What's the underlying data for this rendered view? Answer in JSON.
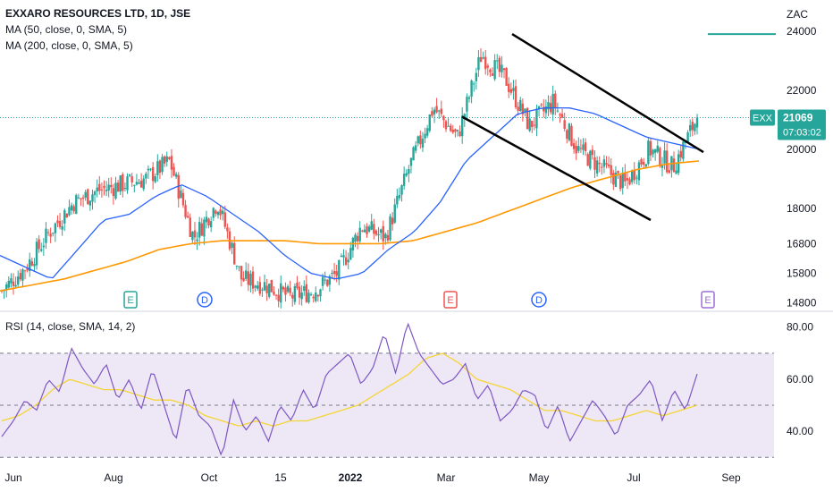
{
  "legend": {
    "title": "EXXARO RESOURCES LTD, 1D, JSE",
    "ma50": "MA (50, close, 0, SMA, 5)",
    "ma200": "MA (200, close, 0, SMA, 5)",
    "rsi": "RSI (14, close, SMA, 14, 2)"
  },
  "price_tag": {
    "symbol": "EXX",
    "price": "21069",
    "countdown": "07:03:02",
    "color": "#26a69a"
  },
  "colors": {
    "up": "#26a69a",
    "down": "#ef5350",
    "ma50": "#2962ff",
    "ma200": "#ff9800",
    "rsi": "#7e57c2",
    "rsi_ma": "#f5d535",
    "rsi_band": "#ede7f6",
    "earnings": "#26a69a",
    "earnings_neg": "#ef5350",
    "dividend": "#2962ff",
    "earnings_future": "#9c6fd6"
  },
  "chart_data": [
    {
      "type": "candlestick",
      "title": "EXXARO RESOURCES LTD, 1D, JSE",
      "currency": "ZAC",
      "ylim": [
        14600,
        24600
      ],
      "y_ticks": [
        "24000",
        "22000",
        "20000",
        "18000",
        "16800",
        "15800",
        "14800"
      ],
      "x_ticks": [
        "Jun",
        "Aug",
        "Oct",
        "15",
        "2022",
        "Mar",
        "May",
        "Jul",
        "Sep"
      ],
      "last_price": 21069,
      "close_path": [
        [
          "Jun",
          15200
        ],
        [
          "Jun-mid",
          16000
        ],
        [
          "Jul",
          17200
        ],
        [
          "Jul-mid",
          18200
        ],
        [
          "Aug",
          18600
        ],
        [
          "Aug-mid",
          18800
        ],
        [
          "Sep",
          19000
        ],
        [
          "Sep-mid",
          19600
        ],
        [
          "Oct",
          17000
        ],
        [
          "Oct-mid",
          18200
        ],
        [
          "Nov",
          15600
        ],
        [
          "Nov-mid",
          15400
        ],
        [
          "Dec",
          15000
        ],
        [
          "Dec-mid",
          15200
        ],
        [
          "2022",
          15800
        ],
        [
          "Jan-mid",
          17400
        ],
        [
          "Feb",
          17000
        ],
        [
          "Feb-mid",
          19400
        ],
        [
          "Mar",
          21400
        ],
        [
          "Mar-mid",
          20400
        ],
        [
          "Apr",
          23200
        ],
        [
          "Apr-mid",
          22400
        ],
        [
          "May",
          20800
        ],
        [
          "May-mid",
          21600
        ],
        [
          "Jun22",
          20000
        ],
        [
          "Jun22-mid",
          19400
        ],
        [
          "Jul",
          18800
        ],
        [
          "Jul-mid",
          20000
        ],
        [
          "Aug",
          19400
        ],
        [
          "Aug-last",
          21069
        ]
      ],
      "ma50_path": [
        16400,
        16000,
        15600,
        16600,
        17600,
        17800,
        18400,
        18800,
        18400,
        17800,
        17200,
        16400,
        15800,
        15600,
        15800,
        16600,
        17200,
        18200,
        19600,
        20400,
        21200,
        21400,
        21400,
        21200,
        20800,
        20400,
        20200,
        20000
      ],
      "ma200_path": [
        15200,
        15400,
        15600,
        15900,
        16200,
        16600,
        16800,
        16900,
        16900,
        16900,
        16800,
        16800,
        16800,
        16900,
        17200,
        17500,
        17900,
        18300,
        18700,
        19000,
        19300,
        19500,
        19600
      ],
      "trendlines": [
        {
          "from": [
            "Apr",
            23800
          ],
          "to": [
            "Aug",
            19700
          ]
        },
        {
          "from": [
            "Mar",
            21000
          ],
          "to": [
            "Jul",
            17700
          ]
        }
      ],
      "events": [
        {
          "label": "E",
          "kind": "earnings",
          "at": "Jul-mid"
        },
        {
          "label": "D",
          "kind": "dividend",
          "at": "Sep-mid"
        },
        {
          "label": "E",
          "kind": "earnings-negative",
          "at": "Mar"
        },
        {
          "label": "D",
          "kind": "dividend",
          "at": "Apr-mid"
        },
        {
          "label": "E",
          "kind": "earnings-upcoming",
          "at": "Aug-last"
        }
      ]
    },
    {
      "type": "line",
      "title": "RSI (14, close, SMA, 14, 2)",
      "ylim": [
        27,
        83
      ],
      "y_ticks": [
        "80.00",
        "60.00",
        "40.00"
      ],
      "band": [
        30,
        70
      ],
      "midline": 50,
      "series": [
        {
          "name": "RSI",
          "values": [
            38,
            44,
            52,
            48,
            60,
            55,
            72,
            64,
            58,
            66,
            52,
            60,
            48,
            64,
            50,
            36,
            58,
            46,
            42,
            30,
            52,
            40,
            46,
            36,
            50,
            44,
            56,
            48,
            62,
            66,
            70,
            58,
            64,
            78,
            62,
            82,
            70,
            64,
            58,
            60,
            66,
            52,
            58,
            44,
            48,
            56,
            54,
            40,
            50,
            36,
            44,
            52,
            46,
            38,
            50,
            54,
            60,
            44,
            56,
            48,
            62
          ]
        },
        {
          "name": "RSI MA",
          "values": [
            44,
            46,
            50,
            56,
            60,
            58,
            56,
            56,
            54,
            52,
            52,
            50,
            46,
            44,
            42,
            44,
            42,
            44,
            44,
            46,
            48,
            50,
            54,
            58,
            62,
            68,
            70,
            66,
            60,
            58,
            56,
            52,
            48,
            48,
            46,
            44,
            44,
            46,
            48,
            46,
            48,
            50
          ]
        }
      ]
    }
  ]
}
